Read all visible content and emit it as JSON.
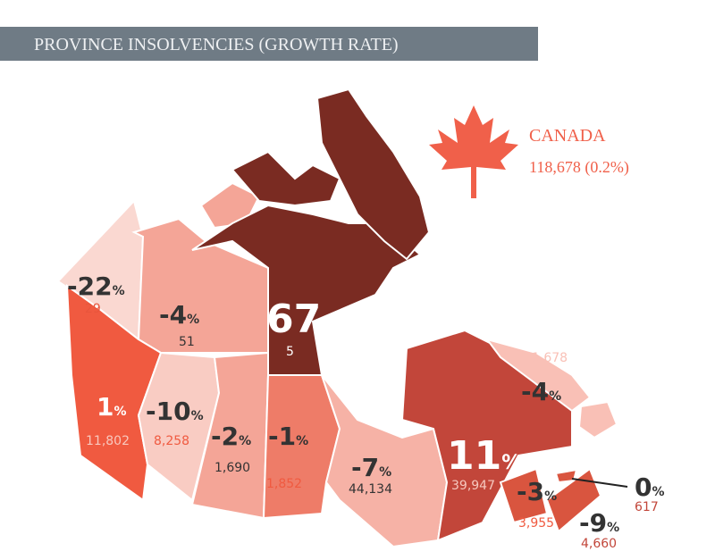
{
  "title": "PROVINCE  INSOLVENCIES  (GROWTH RATE)",
  "national": {
    "name": "CANADA",
    "total": "118,678 (0.2%)"
  },
  "percent_sign": "%",
  "regions": [
    {
      "growth": -22,
      "count": "29",
      "color": "#fad8d1"
    },
    {
      "growth": -4,
      "count": "51",
      "color": "#f4a597"
    },
    {
      "growth": 67,
      "count": "5",
      "color": "#7a2b22"
    },
    {
      "growth": 1,
      "count": "11,802",
      "color": "#f05a40"
    },
    {
      "growth": -10,
      "count": "8,258",
      "color": "#f9ccc3"
    },
    {
      "growth": -2,
      "count": "1,690",
      "color": "#f4a597"
    },
    {
      "growth": -1,
      "count": "1,852",
      "color": "#ee7c68"
    },
    {
      "growth": -7,
      "count": "44,134",
      "color": "#f6b2a6"
    },
    {
      "growth": 11,
      "count": "39,947",
      "color": "#c2463a"
    },
    {
      "growth": -4,
      "count": "1,678",
      "color": "#f9c0b6"
    },
    {
      "growth": -3,
      "count": "3,955",
      "color": "#d9553f"
    },
    {
      "growth": -9,
      "count": "4,660",
      "color": "#d9553f"
    },
    {
      "growth": 0,
      "count": "617",
      "color": "#d9553f"
    }
  ]
}
